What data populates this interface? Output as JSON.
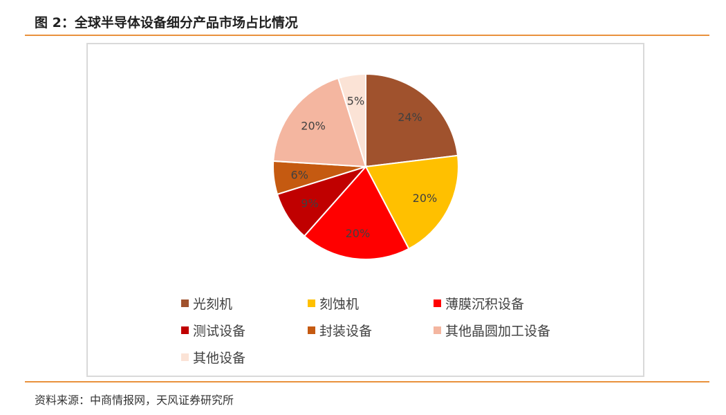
{
  "figure": {
    "title": "图 2：全球半导体设备细分产品市场占比情况",
    "source": "资料来源：中商情报网，天风证券研究所"
  },
  "chart_data": {
    "type": "pie",
    "title": "",
    "slices": [
      {
        "label": "光刻机",
        "value": 24,
        "display": "24%",
        "color": "#A0522D"
      },
      {
        "label": "刻蚀机",
        "value": 20,
        "display": "20%",
        "color": "#FFC000"
      },
      {
        "label": "薄膜沉积设备",
        "value": 20,
        "display": "20%",
        "color": "#FF0000"
      },
      {
        "label": "测试设备",
        "value": 9,
        "display": "9%",
        "color": "#C00000"
      },
      {
        "label": "封装设备",
        "value": 6,
        "display": "6%",
        "color": "#C55A11"
      },
      {
        "label": "其他晶圆加工设备",
        "value": 20,
        "display": "20%",
        "color": "#F4B6A0"
      },
      {
        "label": "其他设备",
        "value": 5,
        "display": "5%",
        "color": "#FBE3D6"
      }
    ],
    "legend_position": "bottom"
  },
  "colors": {
    "accent_rule": "#e9913b",
    "chart_border": "#d9d9d9"
  }
}
